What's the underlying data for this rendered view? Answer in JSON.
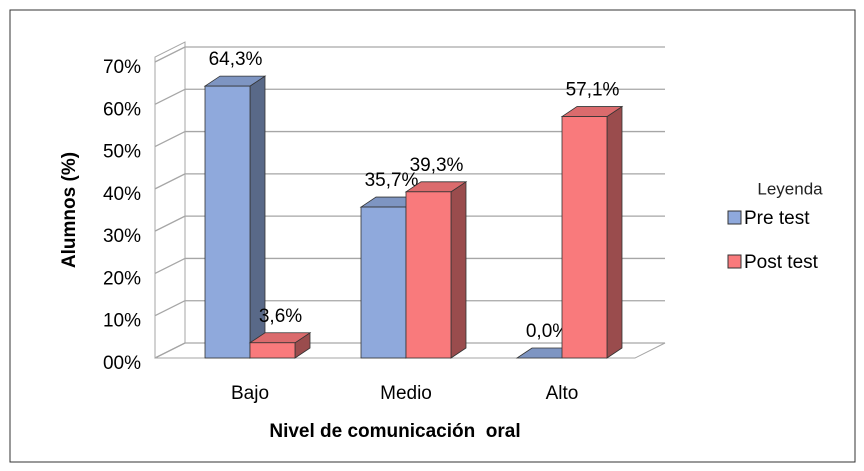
{
  "chart_data": {
    "type": "bar3d",
    "categories": [
      "Bajo",
      "Medio",
      "Alto"
    ],
    "series": [
      {
        "name": "Pre test",
        "color": "#8fa9dc",
        "values": [
          64.3,
          35.7,
          0.0
        ],
        "value_labels": [
          "64,3%",
          "35,7%",
          "0,0%"
        ]
      },
      {
        "name": "Post test",
        "color": "#f97a7c",
        "values": [
          3.6,
          39.3,
          57.1
        ],
        "value_labels": [
          "3,6%",
          "39,3%",
          "57,1%"
        ]
      }
    ],
    "ylim": [
      0,
      70
    ],
    "yticks": [
      {
        "value": 0,
        "label": "00%"
      },
      {
        "value": 10,
        "label": "10%"
      },
      {
        "value": 20,
        "label": "20%"
      },
      {
        "value": 30,
        "label": "30%"
      },
      {
        "value": 40,
        "label": "40%"
      },
      {
        "value": 50,
        "label": "50%"
      },
      {
        "value": 60,
        "label": "60%"
      },
      {
        "value": 70,
        "label": "70%"
      }
    ],
    "y_label": "Alumnos (%)",
    "x_label": "Nivel de comunicación  oral",
    "legend_title": "Leyenda",
    "legend": "right",
    "grid": true
  }
}
